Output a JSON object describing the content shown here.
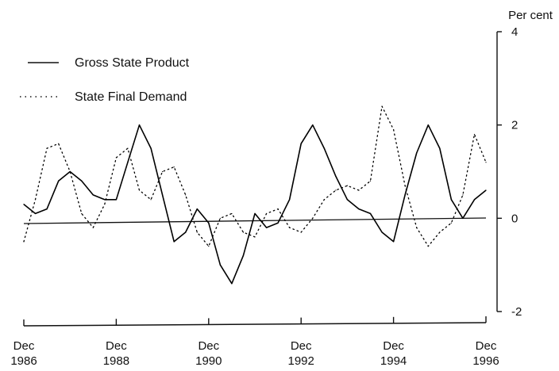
{
  "chart_data": {
    "type": "line",
    "title": "",
    "xlabel": "",
    "ylabel": "",
    "y_unit": "Per cent",
    "ylim": [
      -2,
      4
    ],
    "y_ticks": [
      "4",
      "2",
      "0",
      "-2"
    ],
    "x_ticks": [
      {
        "month": "Dec",
        "year": "1986"
      },
      {
        "month": "Dec",
        "year": "1988"
      },
      {
        "month": "Dec",
        "year": "1990"
      },
      {
        "month": "Dec",
        "year": "1992"
      },
      {
        "month": "Dec",
        "year": "1994"
      },
      {
        "month": "Dec",
        "year": "1996"
      }
    ],
    "x": [
      "Dec 1986",
      "Mar 1987",
      "Jun 1987",
      "Sep 1987",
      "Dec 1987",
      "Mar 1988",
      "Jun 1988",
      "Sep 1988",
      "Dec 1988",
      "Mar 1989",
      "Jun 1989",
      "Sep 1989",
      "Dec 1989",
      "Mar 1990",
      "Jun 1990",
      "Sep 1990",
      "Dec 1990",
      "Mar 1991",
      "Jun 1991",
      "Sep 1991",
      "Dec 1991",
      "Mar 1992",
      "Jun 1992",
      "Sep 1992",
      "Dec 1992",
      "Mar 1993",
      "Jun 1993",
      "Sep 1993",
      "Dec 1993",
      "Mar 1994",
      "Jun 1994",
      "Sep 1994",
      "Dec 1994",
      "Mar 1995",
      "Jun 1995",
      "Sep 1995",
      "Dec 1995",
      "Mar 1996",
      "Jun 1996",
      "Sep 1996",
      "Dec 1996"
    ],
    "grid": false,
    "legend_position": "top-left",
    "series": [
      {
        "name": "Gross State Product",
        "style": "solid",
        "color": "#000000",
        "values": [
          0.3,
          0.1,
          0.2,
          0.8,
          1.0,
          0.8,
          0.5,
          0.4,
          0.4,
          1.2,
          2.0,
          1.5,
          0.5,
          -0.5,
          -0.3,
          0.2,
          -0.1,
          -1.0,
          -1.4,
          -0.8,
          0.1,
          -0.2,
          -0.1,
          0.4,
          1.6,
          2.0,
          1.5,
          0.9,
          0.4,
          0.2,
          0.1,
          -0.3,
          -0.5,
          0.5,
          1.4,
          2.0,
          1.5,
          0.4,
          0.0,
          0.4,
          0.6
        ]
      },
      {
        "name": "State Final Demand",
        "style": "dotted",
        "color": "#000000",
        "values": [
          -0.5,
          0.4,
          1.5,
          1.6,
          1.0,
          0.1,
          -0.2,
          0.3,
          1.3,
          1.5,
          0.6,
          0.4,
          1.0,
          1.1,
          0.5,
          -0.3,
          -0.6,
          0.0,
          0.1,
          -0.3,
          -0.4,
          0.1,
          0.2,
          -0.2,
          -0.3,
          0.0,
          0.4,
          0.6,
          0.7,
          0.6,
          0.8,
          2.4,
          1.9,
          0.7,
          -0.2,
          -0.6,
          -0.3,
          -0.1,
          0.5,
          1.8,
          1.2
        ]
      }
    ]
  }
}
